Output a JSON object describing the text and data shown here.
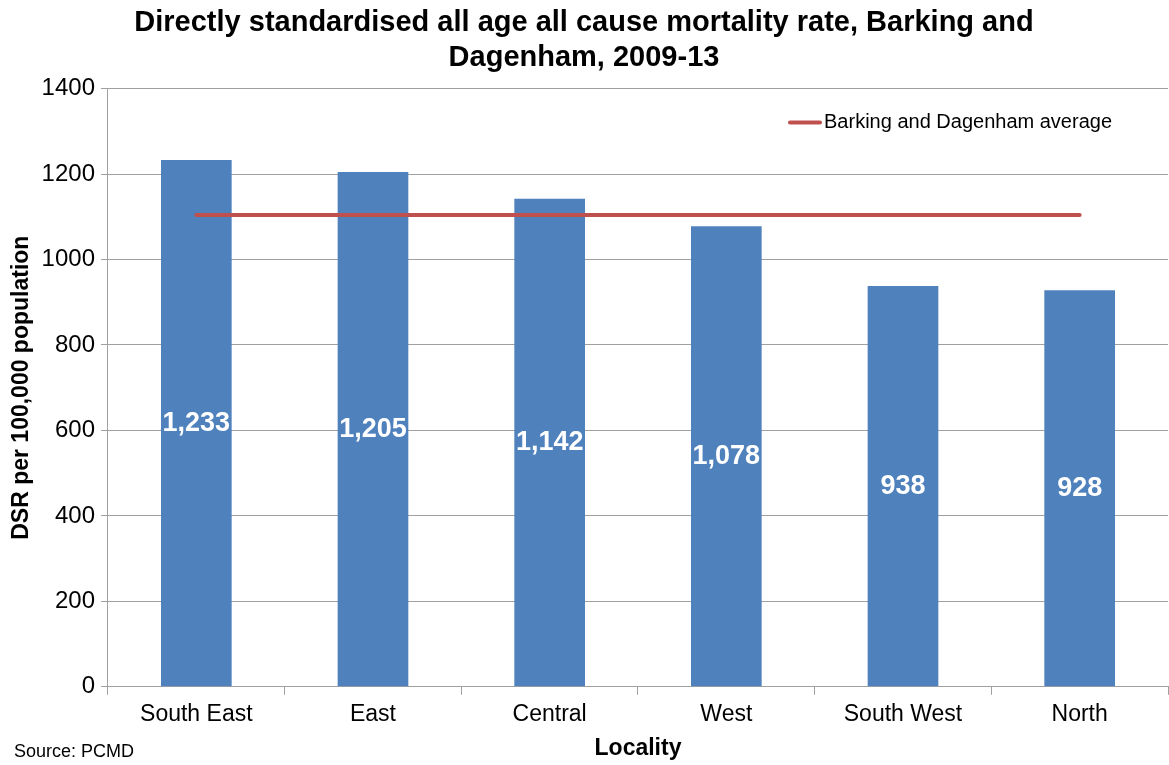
{
  "chart_data": {
    "type": "bar",
    "title": "Directly standardised all age all cause mortality rate, Barking and Dagenham, 2009-13",
    "xlabel": "Locality",
    "ylabel": "DSR per 100,000 population",
    "annotations": [
      "Source: PCMD"
    ],
    "categories": [
      "South East",
      "East",
      "Central",
      "West",
      "South West",
      "North"
    ],
    "series": [
      {
        "color": "#4f81bd",
        "values": [
          1233,
          1205,
          1142,
          1078,
          938,
          928
        ],
        "value_labels": [
          "1,233",
          "1,205",
          "1,142",
          "1,078",
          "938",
          "928"
        ]
      },
      {
        "type": "line",
        "name": "Barking and Dagenham average",
        "color": "#c0504d",
        "values": [
          1104,
          1104,
          1104,
          1104,
          1104,
          1104
        ]
      }
    ],
    "ylim": [
      0,
      1400
    ],
    "yticks": [
      0,
      200,
      400,
      600,
      800,
      1000,
      1200,
      1400
    ],
    "grid": "y",
    "legend": "top right",
    "marker": "none"
  }
}
